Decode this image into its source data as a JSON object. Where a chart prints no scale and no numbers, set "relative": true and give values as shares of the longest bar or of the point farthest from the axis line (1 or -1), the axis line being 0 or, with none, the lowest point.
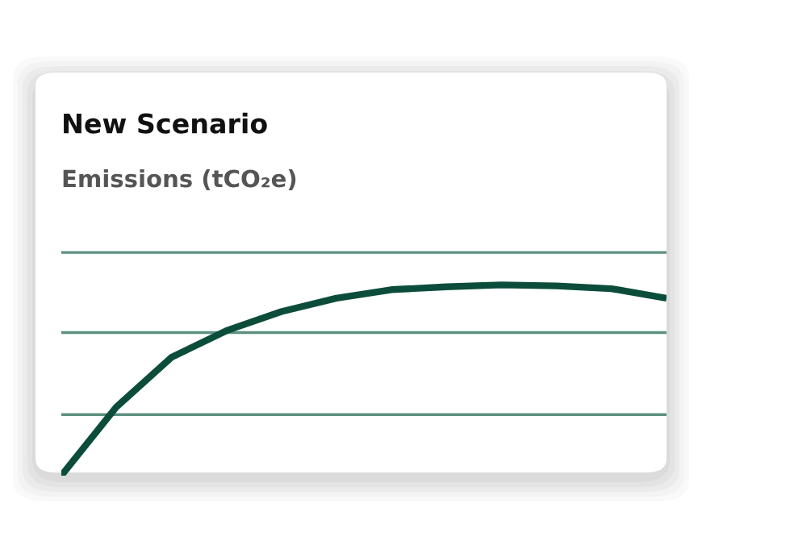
{
  "chart_data": {
    "type": "line",
    "title": "New Scenario",
    "subtitle": "Emissions (tCO₂e)",
    "relative": true,
    "ref_lines": [
      {
        "axis": "y",
        "value": 1.17,
        "color": "#5e9080"
      },
      {
        "axis": "y",
        "value": 0.75,
        "color": "#5e9080"
      },
      {
        "axis": "y",
        "value": 0.32,
        "color": "#5e9080"
      }
    ],
    "categories": [
      null,
      null,
      null,
      null,
      null,
      null,
      null,
      null,
      null,
      null,
      null,
      null
    ],
    "series": [
      {
        "color": "#0b4d3a",
        "values": [
          0,
          0.36,
          0.62,
          0.76,
          0.86,
          0.93,
          0.975,
          0.99,
          1.0,
          0.995,
          0.98,
          0.93
        ]
      }
    ]
  }
}
